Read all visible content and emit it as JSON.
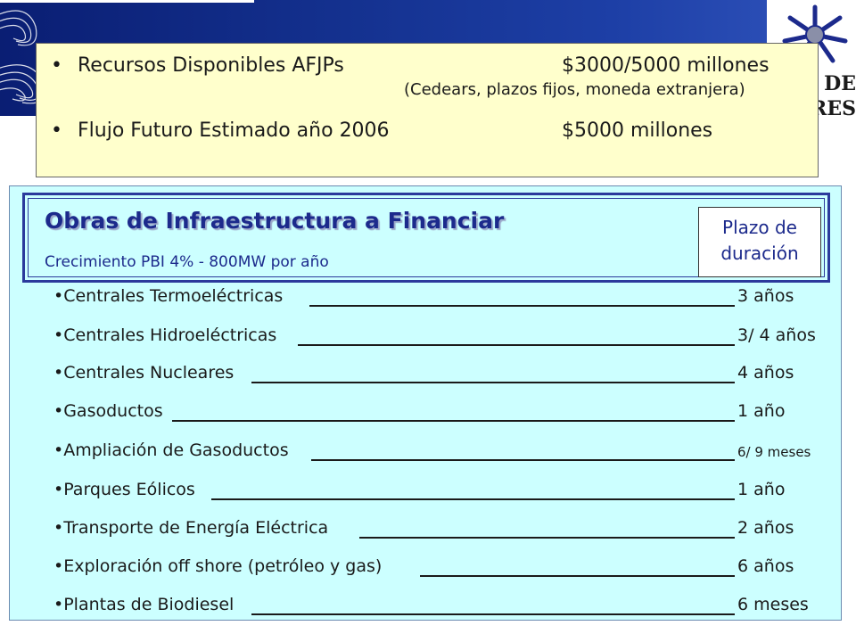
{
  "header_logo": {
    "text_line1": "L DE",
    "text_line2": "IRES"
  },
  "note": {
    "rows": [
      {
        "label": "Recursos Disponibles AFJPs",
        "value": "$3000/5000 millones"
      },
      {
        "label": "Flujo Futuro Estimado año 2006",
        "value": "$5000 millones"
      }
    ],
    "subtext": "(Cedears, plazos fijos, moneda extranjera)"
  },
  "panel": {
    "title": "Obras de Infraestructura a Financiar",
    "subtitle": "Crecimiento PBI 4% - 800MW por año",
    "term_header": [
      "Plazo de",
      "duración"
    ],
    "items": [
      {
        "name": "•Centrales Termoeléctricas",
        "duration": "3 años"
      },
      {
        "name": "•Centrales Hidroeléctricas",
        "duration": "3/ 4  años"
      },
      {
        "name": "•Centrales Nucleares",
        "duration": "4 años"
      },
      {
        "name": "•Gasoductos",
        "duration": "1 año"
      },
      {
        "name": "•Ampliación de Gasoductos",
        "duration": "6/ 9 meses"
      },
      {
        "name": "•Parques Eólicos",
        "duration": "1 año"
      },
      {
        "name": "•Transporte de Energía Eléctrica",
        "duration": "2 años"
      },
      {
        "name": "•Exploración off shore (petróleo y gas)",
        "duration": "6 años"
      },
      {
        "name": "•Plantas de Biodiesel",
        "duration": "6 meses"
      }
    ]
  },
  "colors": {
    "banner": "#14318f",
    "note_bg": "#ffffcc",
    "panel_bg": "#ccffff",
    "title": "#1c2a8c"
  }
}
